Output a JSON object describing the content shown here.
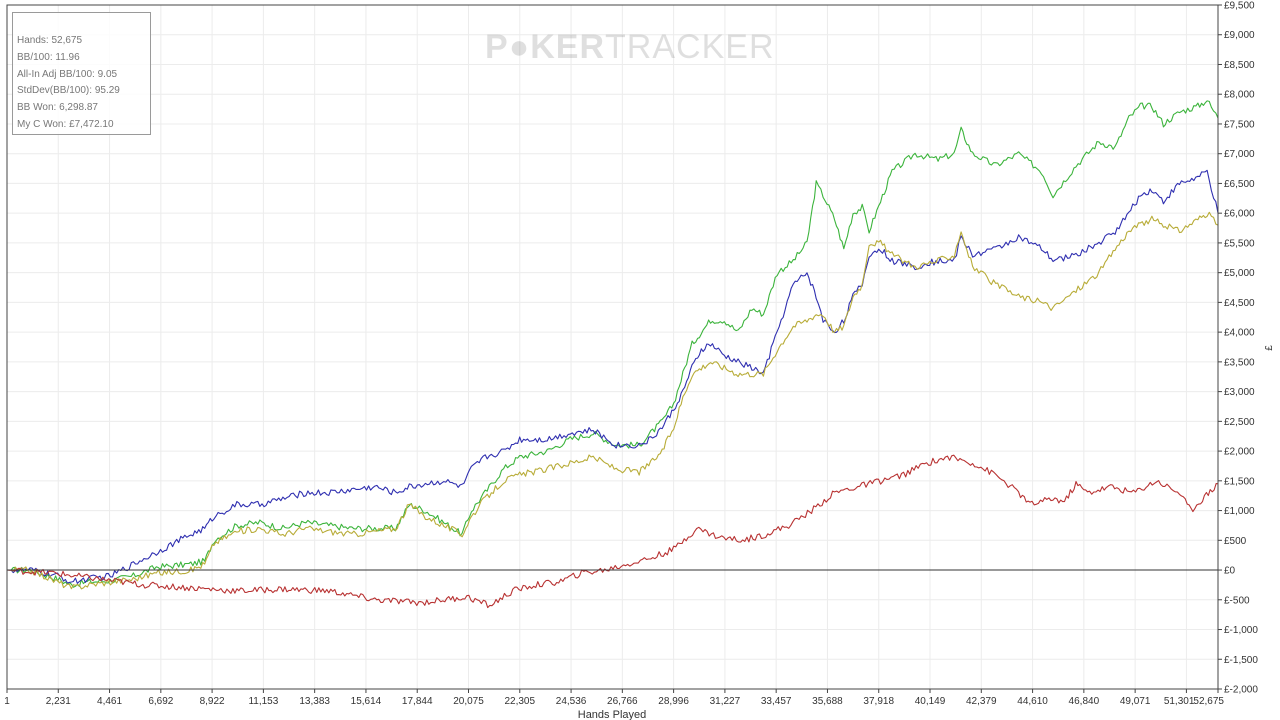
{
  "stats": [
    {
      "label": "Hands",
      "value": "52,675"
    },
    {
      "label": "BB/100",
      "value": "11.96"
    },
    {
      "label": "All-In Adj BB/100",
      "value": "9.05"
    },
    {
      "label": "StdDev(BB/100)",
      "value": "95.29"
    },
    {
      "label": "BB Won",
      "value": "6,298.87"
    },
    {
      "label": "My C Won",
      "value": "£7,472.10"
    }
  ],
  "watermark": {
    "part1": "P",
    "part2": "KER",
    "part3": "TRACKER"
  },
  "chart_data": {
    "type": "line",
    "title": "",
    "xlabel": "Hands Played",
    "ylabel": "£",
    "xlim": [
      1,
      52675
    ],
    "ylim": [
      -2000,
      9500
    ],
    "grid": true,
    "x_ticks": [
      "1",
      "2,231",
      "4,461",
      "6,692",
      "8,922",
      "11,153",
      "13,383",
      "15,614",
      "17,844",
      "20,075",
      "22,305",
      "24,536",
      "26,766",
      "28,996",
      "31,227",
      "33,457",
      "35,688",
      "37,918",
      "40,149",
      "42,379",
      "44,610",
      "46,840",
      "49,071",
      "51,301",
      "52,675"
    ],
    "y_ticks": [
      "£9,500",
      "£9,000",
      "£8,500",
      "£8,000",
      "£7,500",
      "£7,000",
      "£6,500",
      "£6,000",
      "£5,500",
      "£5,000",
      "£4,500",
      "£4,000",
      "£3,500",
      "£3,000",
      "£2,500",
      "£2,000",
      "£1,500",
      "£1,000",
      "£500",
      "£0",
      "£-500",
      "£-1,000",
      "£-1,500",
      "£-2,000"
    ],
    "series": [
      {
        "color": "#3cb43c",
        "x": [
          1,
          1000,
          2200,
          2800,
          3500,
          4500,
          5500,
          6500,
          8000,
          8600,
          9000,
          10000,
          11000,
          12000,
          13000,
          14000,
          15000,
          16000,
          16900,
          17500,
          18200,
          19000,
          19800,
          20200,
          20800,
          21600,
          22300,
          23500,
          24500,
          25500,
          26500,
          27500,
          28000,
          28500,
          29000,
          29400,
          29800,
          30200,
          30600,
          31200,
          31800,
          32400,
          32900,
          33500,
          34200,
          34800,
          35200,
          35500,
          36000,
          36400,
          36800,
          37200,
          37500,
          38000,
          38500,
          39500,
          40500,
          41200,
          41500,
          42000,
          43000,
          44000,
          45000,
          45500,
          46500,
          47500,
          48200,
          48800,
          49300,
          49800,
          50300,
          51000,
          51800,
          52200,
          52675
        ],
        "y": [
          0,
          0,
          -150,
          -250,
          -200,
          -180,
          -100,
          50,
          100,
          150,
          500,
          750,
          800,
          700,
          800,
          750,
          700,
          700,
          700,
          1100,
          1000,
          800,
          600,
          1000,
          1300,
          1700,
          1900,
          2000,
          2200,
          2300,
          2100,
          2100,
          2300,
          2500,
          2800,
          3300,
          3800,
          4000,
          4200,
          4200,
          4000,
          4400,
          4300,
          5000,
          5200,
          5500,
          6500,
          6300,
          5900,
          5400,
          6000,
          6100,
          5700,
          6200,
          6700,
          7000,
          6900,
          7000,
          7400,
          7000,
          6800,
          7000,
          6700,
          6300,
          6800,
          7200,
          7100,
          7600,
          7800,
          7800,
          7500,
          7700,
          7800,
          7900,
          7600
        ]
      },
      {
        "color": "#2f2fb0",
        "x": [
          1,
          1000,
          2200,
          2800,
          3500,
          4500,
          5500,
          6500,
          8000,
          8600,
          9000,
          10000,
          11000,
          12000,
          13000,
          14000,
          15000,
          16000,
          16900,
          17500,
          18200,
          19000,
          19800,
          20200,
          20800,
          21600,
          22300,
          23500,
          24500,
          25500,
          26500,
          27500,
          28000,
          28500,
          29000,
          29400,
          29800,
          30200,
          30600,
          31200,
          31800,
          32400,
          32900,
          33500,
          34200,
          34800,
          35200,
          35500,
          36000,
          36400,
          36800,
          37200,
          37500,
          38000,
          38500,
          39500,
          40500,
          41200,
          41500,
          42000,
          43000,
          44000,
          45000,
          45500,
          46500,
          47500,
          48200,
          48800,
          49300,
          49800,
          50300,
          51000,
          51800,
          52200,
          52675
        ],
        "y": [
          0,
          0,
          -100,
          -200,
          -150,
          -100,
          100,
          300,
          600,
          700,
          900,
          1100,
          1100,
          1200,
          1300,
          1300,
          1350,
          1400,
          1300,
          1400,
          1450,
          1500,
          1400,
          1700,
          1900,
          2000,
          2200,
          2200,
          2300,
          2350,
          2100,
          2100,
          2200,
          2400,
          2700,
          3000,
          3400,
          3700,
          3800,
          3600,
          3500,
          3400,
          3300,
          4000,
          4800,
          5000,
          4600,
          4200,
          4000,
          4200,
          4600,
          4800,
          5300,
          5400,
          5200,
          5100,
          5200,
          5200,
          5600,
          5300,
          5400,
          5600,
          5400,
          5200,
          5300,
          5500,
          5700,
          6000,
          6300,
          6400,
          6200,
          6500,
          6600,
          6700,
          6000
        ]
      },
      {
        "color": "#b8ac38",
        "x": [
          1,
          1000,
          2200,
          2800,
          3500,
          4500,
          5500,
          6500,
          8000,
          8600,
          9000,
          10000,
          11000,
          12000,
          13000,
          14000,
          15000,
          16000,
          16900,
          17500,
          18200,
          19000,
          19800,
          20200,
          20800,
          21600,
          22300,
          23500,
          24500,
          25500,
          26500,
          27500,
          28000,
          28500,
          29000,
          29400,
          29800,
          30200,
          30600,
          31200,
          31800,
          32400,
          32900,
          33500,
          34200,
          34800,
          35200,
          35500,
          36000,
          36400,
          36800,
          37200,
          37500,
          38000,
          38500,
          39500,
          40500,
          41200,
          41500,
          42000,
          43000,
          44000,
          45000,
          45500,
          46500,
          47500,
          48200,
          48800,
          49300,
          49800,
          50300,
          51000,
          51800,
          52200,
          52675
        ],
        "y": [
          0,
          0,
          -200,
          -300,
          -250,
          -200,
          -150,
          -50,
          0,
          100,
          450,
          650,
          700,
          600,
          700,
          650,
          600,
          650,
          700,
          1100,
          900,
          750,
          600,
          900,
          1200,
          1500,
          1600,
          1700,
          1800,
          1900,
          1700,
          1650,
          1800,
          2000,
          2400,
          2900,
          3300,
          3400,
          3500,
          3400,
          3300,
          3300,
          3300,
          3700,
          4100,
          4200,
          4300,
          4300,
          4000,
          4100,
          4600,
          4800,
          5500,
          5500,
          5300,
          5100,
          5200,
          5300,
          5700,
          5100,
          4800,
          4600,
          4500,
          4400,
          4700,
          5000,
          5400,
          5700,
          5800,
          5900,
          5800,
          5700,
          5900,
          6000,
          5800
        ]
      },
      {
        "color": "#b83232",
        "x": [
          1,
          2000,
          4000,
          6000,
          8000,
          10000,
          12000,
          14000,
          16000,
          18000,
          20000,
          21000,
          22000,
          23000,
          24000,
          25000,
          26000,
          27000,
          28000,
          29000,
          30000,
          31000,
          32000,
          33000,
          34000,
          35000,
          36000,
          37000,
          38000,
          39000,
          40000,
          41000,
          42000,
          43000,
          44000,
          44500,
          45500,
          46000,
          46500,
          47000,
          48000,
          49000,
          50000,
          51000,
          51500,
          52000,
          52675
        ],
        "y": [
          0,
          -50,
          -150,
          -250,
          -300,
          -350,
          -320,
          -350,
          -500,
          -550,
          -450,
          -600,
          -350,
          -250,
          -200,
          -50,
          0,
          100,
          200,
          350,
          700,
          550,
          500,
          600,
          750,
          1000,
          1300,
          1400,
          1500,
          1600,
          1800,
          1900,
          1800,
          1600,
          1300,
          1100,
          1200,
          1150,
          1450,
          1300,
          1400,
          1300,
          1500,
          1300,
          1000,
          1200,
          1450
        ]
      }
    ]
  }
}
